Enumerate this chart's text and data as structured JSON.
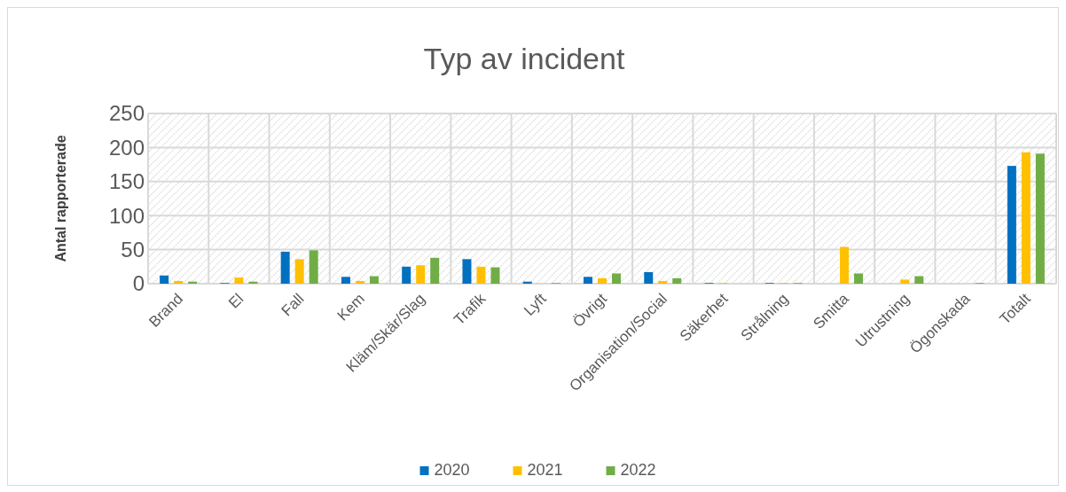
{
  "chart_data": {
    "type": "bar",
    "title": "Typ av incident",
    "ylabel": "Antal rapporterade",
    "categories": [
      "Brand",
      "El",
      "Fall",
      "Kem",
      "Kläm/Skär/Slag",
      "Trafik",
      "Lyft",
      "Övrigt",
      "Organisation/Social",
      "Säkerhet",
      "Strålning",
      "Smitta",
      "Utrustning",
      "Ögonskada",
      "Totalt"
    ],
    "series": [
      {
        "name": "2020",
        "color": "#0070c0",
        "values": [
          12,
          1,
          47,
          10,
          25,
          36,
          3,
          10,
          17,
          1,
          1,
          0,
          0,
          0,
          173
        ]
      },
      {
        "name": "2021",
        "color": "#ffc000",
        "values": [
          4,
          9,
          36,
          4,
          27,
          25,
          0,
          8,
          4,
          1,
          1,
          54,
          6,
          0,
          193
        ]
      },
      {
        "name": "2022",
        "color": "#70ad47",
        "values": [
          3,
          3,
          49,
          11,
          38,
          24,
          1,
          15,
          8,
          0,
          1,
          15,
          11,
          1,
          191
        ]
      }
    ],
    "ylim": [
      0,
      250
    ],
    "yticks": [
      0,
      50,
      100,
      150,
      200,
      250
    ],
    "grid": true,
    "legend": "bottom"
  }
}
